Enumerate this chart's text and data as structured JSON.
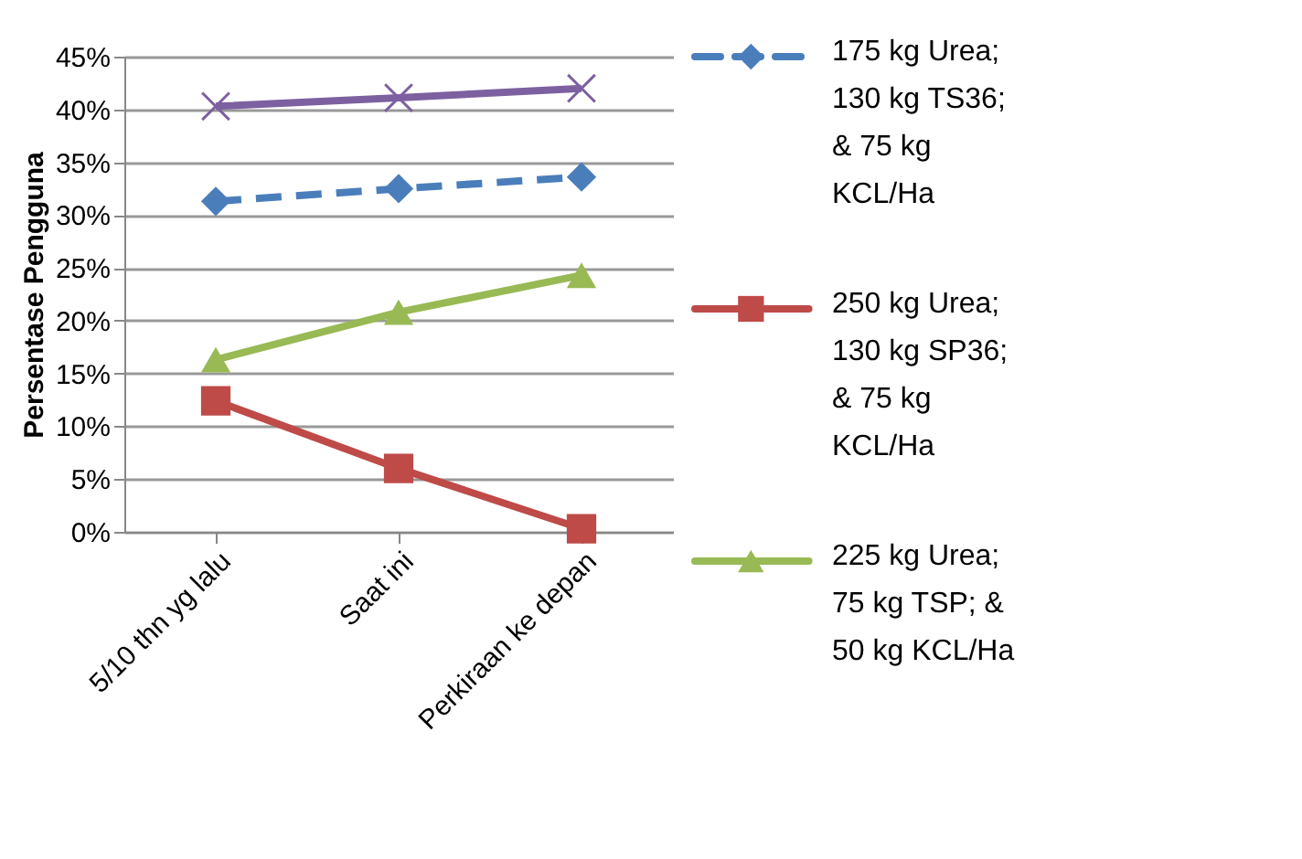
{
  "chart_data": {
    "type": "line",
    "ylabel": "Persentase Pengguna",
    "categories": [
      "5/10 thn yg lalu",
      "Saat ini",
      "Perkiraan ke depan"
    ],
    "series": [
      {
        "name": "175 kg Urea; 130 kg TS36; & 75 kg KCL/Ha",
        "color": "#4a7ebb",
        "values": [
          31.3,
          32.5,
          33.6
        ],
        "marker": "diamond",
        "line_style": "dashed"
      },
      {
        "name": "250 kg Urea; 130 kg SP36; & 75 kg KCL/Ha",
        "color": "#be4b48",
        "values": [
          12.4,
          6.0,
          0.3
        ],
        "marker": "square",
        "line_style": "solid"
      },
      {
        "name": "225 kg Urea; 75 kg TSP; & 50 kg KCL/Ha",
        "color": "#98b954",
        "values": [
          16.3,
          20.8,
          24.3
        ],
        "marker": "triangle",
        "line_style": "solid"
      },
      {
        "color": "#7d60a0",
        "values": [
          40.3,
          41.1,
          42.0
        ],
        "marker": "cross",
        "line_style": "solid"
      }
    ],
    "ylim": [
      0,
      45
    ],
    "yticks": [
      {
        "value": 0,
        "label": "0%"
      },
      {
        "value": 5,
        "label": "5%"
      },
      {
        "value": 10,
        "label": "10%"
      },
      {
        "value": 15,
        "label": "15%"
      },
      {
        "value": 20,
        "label": "20%"
      },
      {
        "value": 25,
        "label": "25%"
      },
      {
        "value": 30,
        "label": "30%"
      },
      {
        "value": 35,
        "label": "35%"
      },
      {
        "value": 40,
        "label": "40%"
      },
      {
        "value": 45,
        "label": "45%"
      }
    ],
    "grid": "y",
    "legend": "right"
  }
}
